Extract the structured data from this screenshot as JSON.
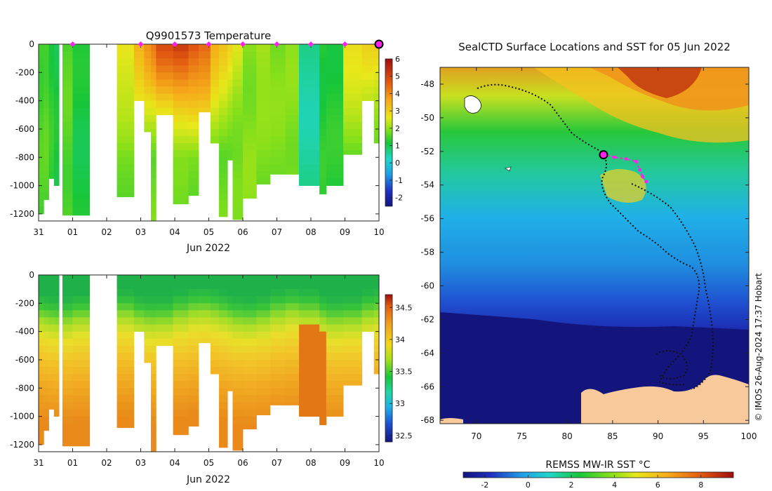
{
  "chart_data": [
    {
      "type": "heatmap",
      "title": "Q9901573  Temperature",
      "xlabel": "Jun 2022",
      "x_ticks": [
        "31",
        "01",
        "02",
        "03",
        "04",
        "05",
        "06",
        "07",
        "08",
        "09",
        "10"
      ],
      "y_ticks": [
        "0",
        "-200",
        "-400",
        "-600",
        "-800",
        "-1000",
        "-1200"
      ],
      "ylim": [
        -1250,
        0
      ],
      "xlim": [
        "2022-05-31",
        "2022-06-10"
      ],
      "colorbar": {
        "min": -2.5,
        "max": 6,
        "ticks": [
          "-2",
          "-1",
          "0",
          "1",
          "2",
          "3",
          "4",
          "5",
          "6"
        ]
      },
      "surface_markers_days": [
        1.0,
        3.0,
        4.0,
        5.0,
        6.0,
        7.0,
        8.0,
        9.0
      ],
      "current_marker_day": 10.0,
      "profiles": [
        {
          "t": 0.0,
          "w": 0.15,
          "depth": 1200
        },
        {
          "t": 0.15,
          "w": 0.15,
          "depth": 1100
        },
        {
          "t": 0.3,
          "w": 0.15,
          "depth": 950
        },
        {
          "t": 0.45,
          "w": 0.15,
          "depth": 1000
        },
        {
          "t": 0.7,
          "w": 0.3,
          "depth": 1210
        },
        {
          "t": 1.0,
          "w": 0.5,
          "depth": 1210
        },
        {
          "t": 2.3,
          "w": 0.5,
          "depth": 1080
        },
        {
          "t": 2.8,
          "w": 0.3,
          "depth": 400
        },
        {
          "t": 3.1,
          "w": 0.2,
          "depth": 620
        },
        {
          "t": 3.3,
          "w": 0.15,
          "depth": 1250
        },
        {
          "t": 3.45,
          "w": 0.5,
          "depth": 500
        },
        {
          "t": 3.95,
          "w": 0.45,
          "depth": 1130
        },
        {
          "t": 4.4,
          "w": 0.3,
          "depth": 1070
        },
        {
          "t": 4.7,
          "w": 0.35,
          "depth": 480
        },
        {
          "t": 5.05,
          "w": 0.25,
          "depth": 700
        },
        {
          "t": 5.3,
          "w": 0.25,
          "depth": 1220
        },
        {
          "t": 5.55,
          "w": 0.15,
          "depth": 820
        },
        {
          "t": 5.7,
          "w": 0.3,
          "depth": 1240
        },
        {
          "t": 6.0,
          "w": 0.4,
          "depth": 1090
        },
        {
          "t": 6.4,
          "w": 0.4,
          "depth": 990
        },
        {
          "t": 6.8,
          "w": 0.45,
          "depth": 920
        },
        {
          "t": 7.25,
          "w": 0.4,
          "depth": 920
        },
        {
          "t": 7.65,
          "w": 0.6,
          "depth": 1000
        },
        {
          "t": 8.25,
          "w": 0.2,
          "depth": 1060
        },
        {
          "t": 8.45,
          "w": 0.5,
          "depth": 1000
        },
        {
          "t": 8.95,
          "w": 0.55,
          "depth": 780
        },
        {
          "t": 9.5,
          "w": 0.35,
          "depth": 400
        },
        {
          "t": 9.85,
          "w": 0.15,
          "depth": 700
        }
      ]
    },
    {
      "type": "heatmap",
      "xlabel": "Jun 2022",
      "x_ticks": [
        "31",
        "01",
        "02",
        "03",
        "04",
        "05",
        "06",
        "07",
        "08",
        "09",
        "10"
      ],
      "y_ticks": [
        "0",
        "-200",
        "-400",
        "-600",
        "-800",
        "-1000",
        "-1200"
      ],
      "ylim": [
        -1250,
        0
      ],
      "xlim": [
        "2022-05-31",
        "2022-06-10"
      ],
      "colorbar": {
        "min": 32.4,
        "max": 34.7,
        "ticks": [
          "32.5",
          "33",
          "33.5",
          "34",
          "34.5"
        ]
      }
    },
    {
      "type": "heatmap",
      "title": "SealCTD Surface Locations and SST for 05 Jun 2022",
      "x_ticks": [
        "70",
        "75",
        "80",
        "85",
        "90",
        "95",
        "100"
      ],
      "y_ticks": [
        "-48",
        "-50",
        "-52",
        "-54",
        "-56",
        "-58",
        "-60",
        "-62",
        "-64",
        "-66",
        "-68"
      ],
      "xlim": [
        66,
        100
      ],
      "ylim": [
        -68.2,
        -47
      ],
      "colorbar": {
        "label": "REMSS MW-IR SST °C",
        "min": -3,
        "max": 9.5,
        "ticks": [
          "-2",
          "0",
          "2",
          "4",
          "6",
          "8"
        ]
      },
      "current_position": {
        "lon": 84.0,
        "lat": -52.2
      },
      "recent_positions": [
        {
          "lon": 85.2,
          "lat": -52.35
        },
        {
          "lon": 86.5,
          "lat": -52.45
        },
        {
          "lon": 87.6,
          "lat": -52.6
        },
        {
          "lon": 88.0,
          "lat": -53.1
        },
        {
          "lon": 88.3,
          "lat": -53.5
        },
        {
          "lon": 88.7,
          "lat": -53.8
        }
      ]
    }
  ],
  "credit": "© IMOS 26-Aug-2024 17:37 Hobart"
}
